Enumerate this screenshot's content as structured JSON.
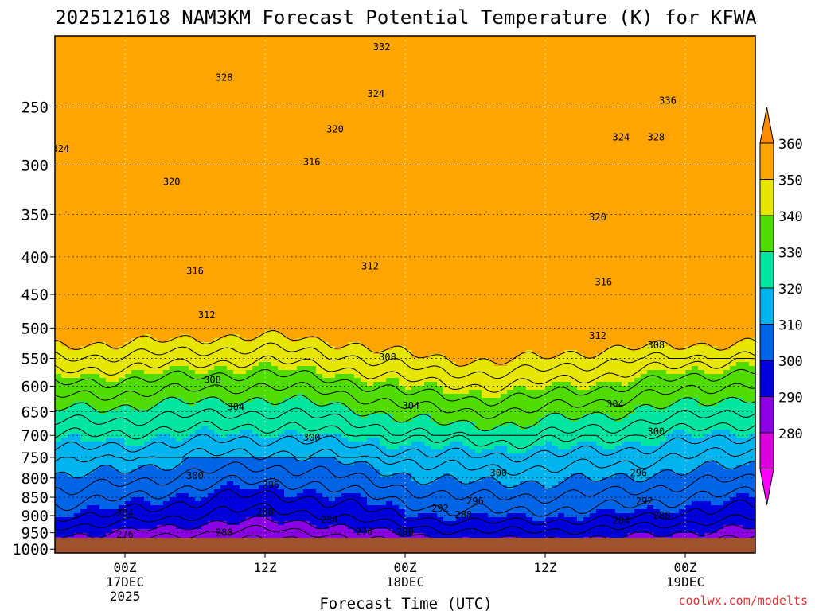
{
  "chart_data": {
    "type": "heatmap",
    "title": "2025121618 NAM3KM Forecast Potential Temperature (K) for KFWA",
    "xlabel": "Forecast Time (UTC)",
    "ylabel": "",
    "credit": "coolwx.com/modelts",
    "x_ticks": [
      {
        "label": "00Z",
        "sub1": "17DEC",
        "sub2": "2025",
        "hour": 6
      },
      {
        "label": "12Z",
        "sub1": "",
        "sub2": "",
        "hour": 18
      },
      {
        "label": "00Z",
        "sub1": "18DEC",
        "sub2": "",
        "hour": 30
      },
      {
        "label": "12Z",
        "sub1": "",
        "sub2": "",
        "hour": 42
      },
      {
        "label": "00Z",
        "sub1": "19DEC",
        "sub2": "",
        "hour": 54
      }
    ],
    "x_range_hours": [
      0,
      60
    ],
    "y_ticks": [
      "250",
      "300",
      "350",
      "400",
      "450",
      "500",
      "550",
      "600",
      "650",
      "700",
      "750",
      "800",
      "850",
      "900",
      "950",
      "1000"
    ],
    "y_tick_values": [
      250,
      300,
      350,
      400,
      450,
      500,
      550,
      600,
      650,
      700,
      750,
      800,
      850,
      900,
      950,
      1000
    ],
    "y_range_hpa": [
      200,
      1012
    ],
    "colorbar": {
      "labels": [
        "360",
        "350",
        "340",
        "330",
        "320",
        "310",
        "300",
        "290",
        "280"
      ],
      "levels": [
        280,
        290,
        300,
        310,
        320,
        330,
        340,
        350,
        360
      ],
      "colors": [
        "#dc00dc",
        "#8c00e6",
        "#0000dc",
        "#0064e6",
        "#00b4f0",
        "#00e6a0",
        "#50dc00",
        "#e6e600",
        "#ffa500"
      ],
      "under_color": "#ff00ff",
      "over_color": "#ff8c00"
    },
    "contour_labels": [
      {
        "text": "332",
        "hour": 28.0,
        "p": 207
      },
      {
        "text": "328",
        "hour": 14.5,
        "p": 228
      },
      {
        "text": "324",
        "hour": 27.5,
        "p": 240
      },
      {
        "text": "336",
        "hour": 52.5,
        "p": 245
      },
      {
        "text": "324",
        "hour": 0.5,
        "p": 285
      },
      {
        "text": "320",
        "hour": 24.0,
        "p": 268
      },
      {
        "text": "324",
        "hour": 48.5,
        "p": 275
      },
      {
        "text": "328",
        "hour": 51.5,
        "p": 275
      },
      {
        "text": "316",
        "hour": 22.0,
        "p": 297
      },
      {
        "text": "320",
        "hour": 10.0,
        "p": 316
      },
      {
        "text": "320",
        "hour": 46.5,
        "p": 353
      },
      {
        "text": "316",
        "hour": 12.0,
        "p": 418
      },
      {
        "text": "312",
        "hour": 27.0,
        "p": 412
      },
      {
        "text": "316",
        "hour": 47.0,
        "p": 433
      },
      {
        "text": "312",
        "hour": 13.0,
        "p": 480
      },
      {
        "text": "312",
        "hour": 46.5,
        "p": 512
      },
      {
        "text": "308",
        "hour": 51.5,
        "p": 528
      },
      {
        "text": "308",
        "hour": 28.5,
        "p": 548
      },
      {
        "text": "308",
        "hour": 13.5,
        "p": 588
      },
      {
        "text": "304",
        "hour": 30.5,
        "p": 638
      },
      {
        "text": "304",
        "hour": 48.0,
        "p": 635
      },
      {
        "text": "304",
        "hour": 15.5,
        "p": 640
      },
      {
        "text": "300",
        "hour": 51.5,
        "p": 692
      },
      {
        "text": "300",
        "hour": 22.0,
        "p": 705
      },
      {
        "text": "300",
        "hour": 38.0,
        "p": 788
      },
      {
        "text": "296",
        "hour": 50.0,
        "p": 788
      },
      {
        "text": "300",
        "hour": 12.0,
        "p": 795
      },
      {
        "text": "296",
        "hour": 18.5,
        "p": 818
      },
      {
        "text": "296",
        "hour": 36.0,
        "p": 860
      },
      {
        "text": "292",
        "hour": 50.5,
        "p": 860
      },
      {
        "text": "292",
        "hour": 33.0,
        "p": 880
      },
      {
        "text": "284",
        "hour": 6.0,
        "p": 893
      },
      {
        "text": "288",
        "hour": 18.0,
        "p": 890
      },
      {
        "text": "288",
        "hour": 35.0,
        "p": 898
      },
      {
        "text": "288",
        "hour": 52.0,
        "p": 900
      },
      {
        "text": "284",
        "hour": 23.5,
        "p": 913
      },
      {
        "text": "284",
        "hour": 48.5,
        "p": 915
      },
      {
        "text": "276",
        "hour": 26.5,
        "p": 947
      },
      {
        "text": "280",
        "hour": 30.0,
        "p": 947
      },
      {
        "text": "280",
        "hour": 14.5,
        "p": 950
      },
      {
        "text": "276",
        "hour": 6.0,
        "p": 955
      }
    ]
  },
  "colors": {
    "ground": "#a0522d",
    "axis": "#000000",
    "credit": "#e03030",
    "contour": "#000000"
  }
}
